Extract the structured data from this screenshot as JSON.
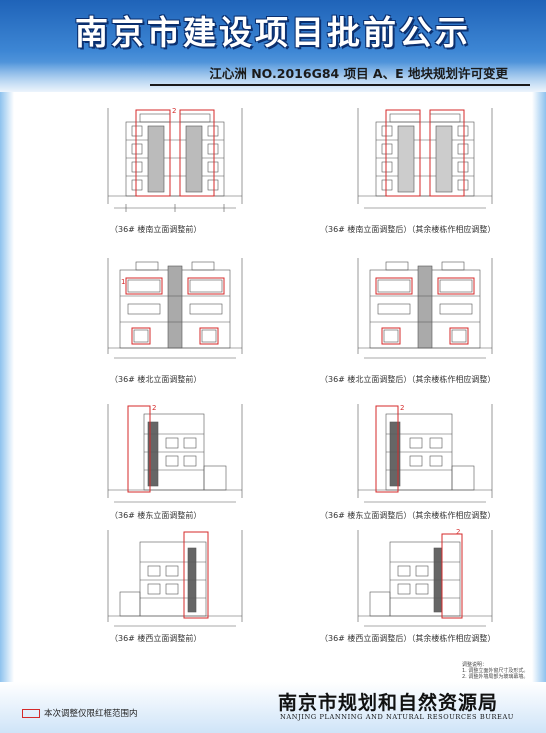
{
  "header": {
    "title": "南京市建设项目批前公示",
    "subtitle": "江心洲 NO.2016G84 项目 A、E 地块规划许可变更"
  },
  "drawings": [
    {
      "caption": "（36# 楼南立面调整前）",
      "view": "south",
      "mark": "2"
    },
    {
      "caption": "（36# 楼南立面调整后）（其余楼栋作相应调整）",
      "view": "south",
      "mark": ""
    },
    {
      "caption": "（36# 楼北立面调整前）",
      "view": "north",
      "mark": "1"
    },
    {
      "caption": "（36# 楼北立面调整后）（其余楼栋作相应调整）",
      "view": "north",
      "mark": ""
    },
    {
      "caption": "（36# 楼东立面调整前）",
      "view": "east",
      "mark": "2"
    },
    {
      "caption": "（36# 楼东立面调整后）（其余楼栋作相应调整）",
      "view": "east",
      "mark": "2"
    },
    {
      "caption": "（36# 楼西立面调整前）",
      "view": "west",
      "mark": ""
    },
    {
      "caption": "（36# 楼西立面调整后）（其余楼栋作相应调整）",
      "view": "west",
      "mark": "2"
    }
  ],
  "notes": {
    "title": "调整说明：",
    "items": [
      "1. 调整立面外窗尺寸及形式。",
      "2. 调整外墙局部为玻璃幕墙。"
    ]
  },
  "legend": {
    "label": "本次调整仅限红框范围内",
    "color": "#d42a2a"
  },
  "footer": {
    "bureau_cn": "南京市规划和自然资源局",
    "bureau_en": "NANJING PLANNING AND NATURAL RESOURCES BUREAU"
  },
  "colors": {
    "header": "#2f78c9",
    "highlight": "#d42a2a",
    "line": "#555555"
  }
}
